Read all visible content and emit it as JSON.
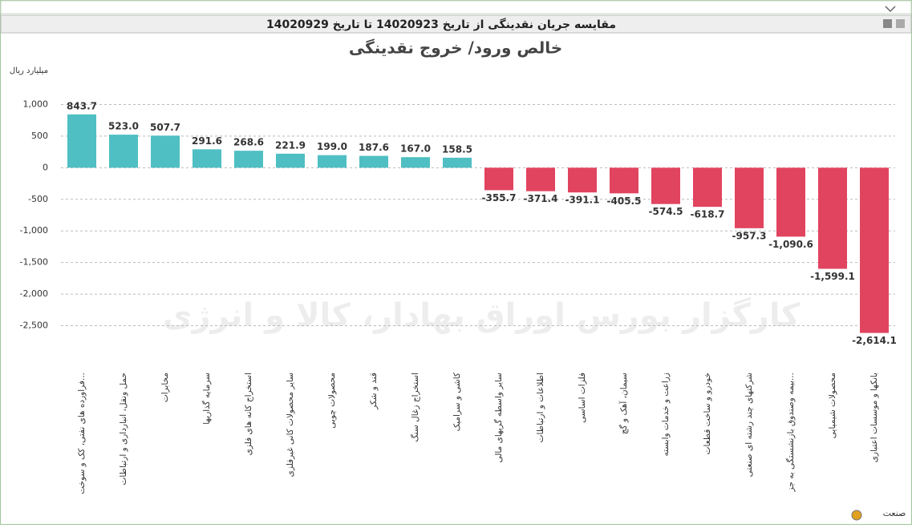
{
  "header": {
    "title": "مقایسه جریان نقدینگی از تاریخ 14020923 تا تاریخ 14020929"
  },
  "chart_data": {
    "type": "bar",
    "title": "خالص ورود/ خروج نقدینگی",
    "y_label": "میلیارد ریال",
    "x_label": "صنعت",
    "watermark": "کارگزار بورس اوراق بهادار، کالا و انرژی",
    "categories": [
      "فراورده های نفتی، کک و سوخت...",
      "حمل ونقل، انبارداری و ارتباطات",
      "مخابرات",
      "سرمایه گذاریها",
      "استخراج کانه های فلزی",
      "سایر محصولات کانی غیرفلزی",
      "محصولات چوبی",
      "قند و شکر",
      "استخراج زغال سنگ",
      "کاشی و سرامیک",
      "سایر واسطه گریهای مالی",
      "اطلاعات و ارتباطات",
      "فلزات اساسی",
      "سیمان، آهک و گچ",
      "زراعت و خدمات وابسته",
      "خودرو و ساخت قطعات",
      "شرکتهای چند رشته ای صنعتی",
      "بیمه وصندوق بازنشستگی به جز...",
      "محصولات شیمیایی",
      "بانکها و موسسات اعتباری"
    ],
    "values": [
      843.7,
      523.0,
      507.7,
      291.6,
      268.6,
      221.9,
      199.0,
      187.6,
      167.0,
      158.5,
      -355.7,
      -371.4,
      -391.1,
      -405.5,
      -574.5,
      -618.7,
      -957.3,
      -1090.6,
      -1599.1,
      -2614.1
    ],
    "value_labels": [
      "843.7",
      "523.0",
      "507.7",
      "291.6",
      "268.6",
      "221.9",
      "199.0",
      "187.6",
      "167.0",
      "158.5",
      "-355.7",
      "-371.4",
      "-391.1",
      "-405.5",
      "-574.5",
      "-618.7",
      "-957.3",
      "-1,090.6",
      "-1,599.1",
      "-2,614.1"
    ],
    "positive_color": "#4fbfc3",
    "negative_color": "#e1445f",
    "ylim": [
      -3000,
      1500
    ],
    "yticks": [
      {
        "value": 1000,
        "label": "1,000"
      },
      500,
      0,
      -500,
      {
        "value": -1000,
        "label": "-1,000"
      },
      {
        "value": -1500,
        "label": "-1,500"
      },
      {
        "value": -2000,
        "label": "-2,000"
      },
      {
        "value": -2500,
        "label": "-2,500"
      }
    ],
    "grid": true
  }
}
